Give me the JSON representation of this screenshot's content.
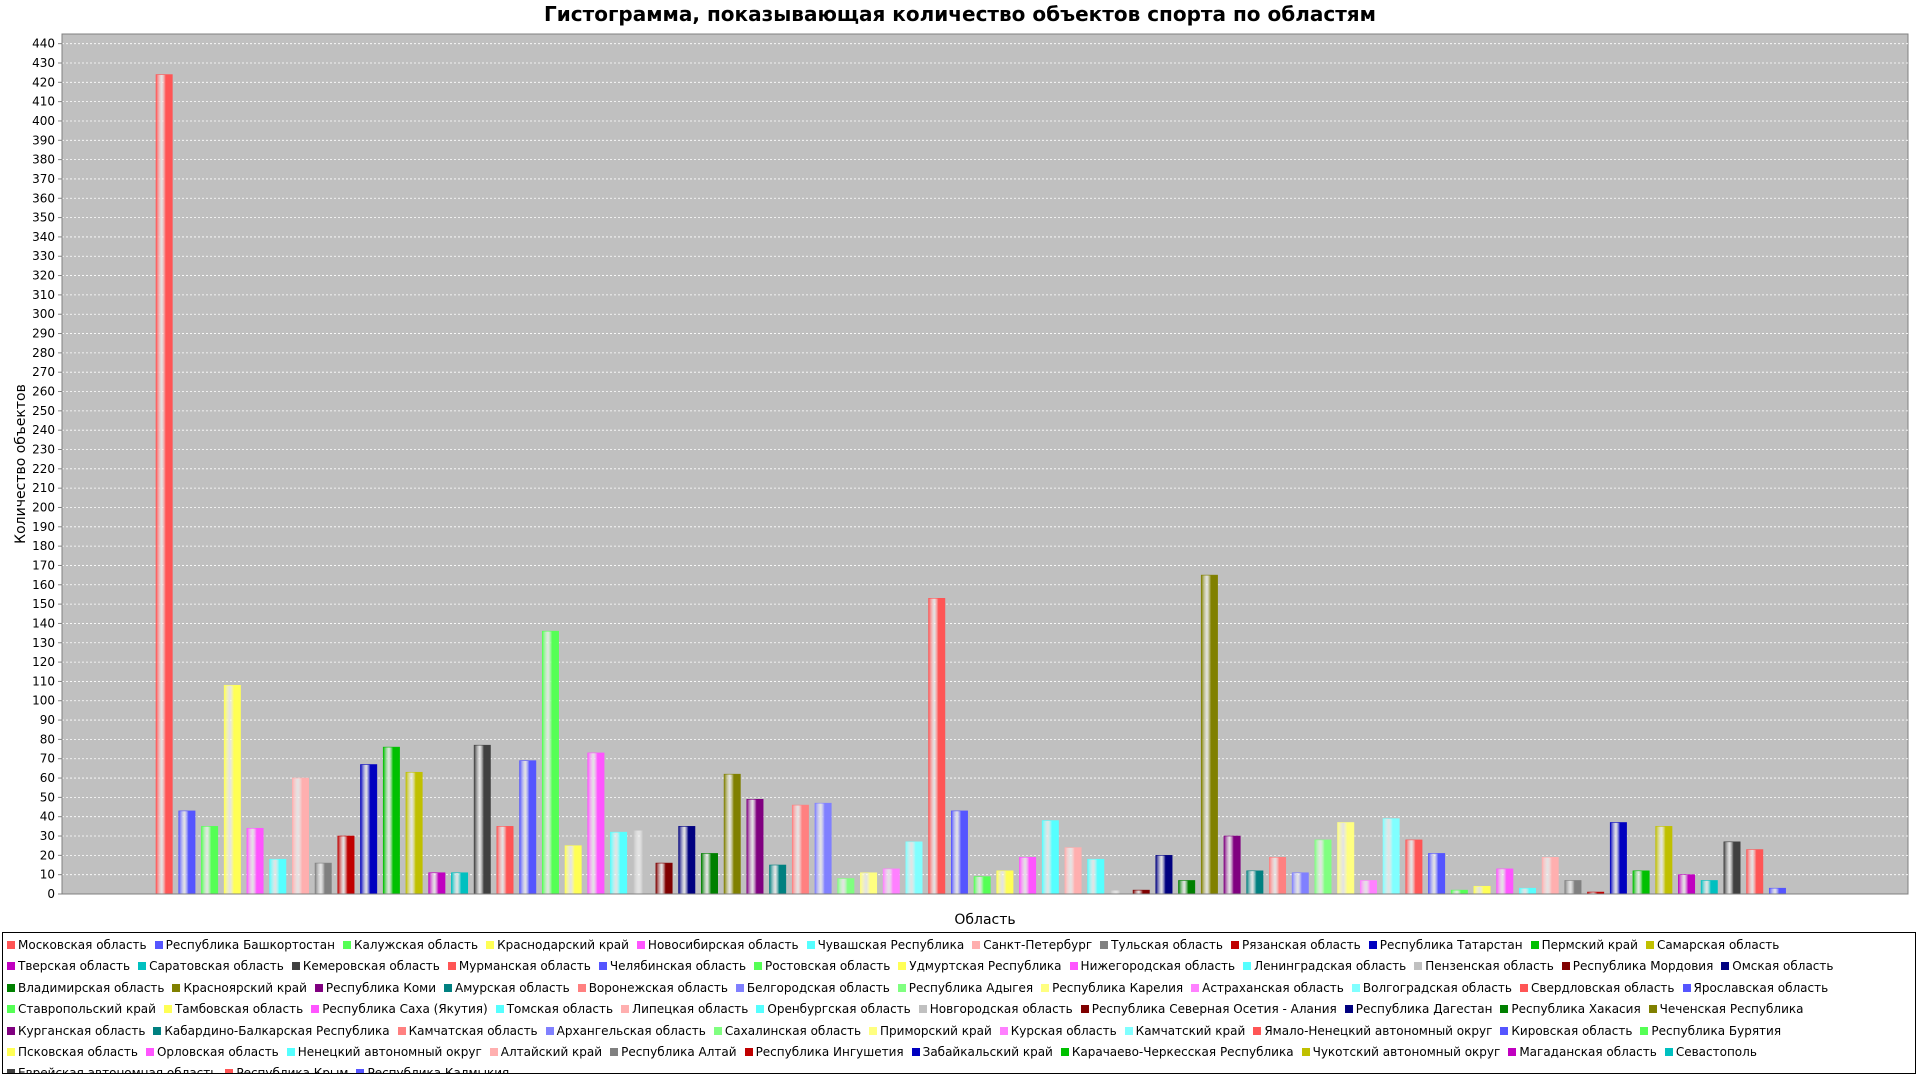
{
  "chart_data": {
    "type": "bar",
    "title": "Гистограмма, показывающая количество объектов спорта по областям",
    "xlabel": "Область",
    "ylabel": "Количество объектов",
    "ylim": [
      0,
      445
    ],
    "ytick_step": 10,
    "grid": true,
    "legend_position": "bottom",
    "series": [
      {
        "name": "Московская область",
        "value": 424,
        "color": "#ff5555"
      },
      {
        "name": "Республика Башкортостан",
        "value": 43,
        "color": "#5555ff"
      },
      {
        "name": "Калужская область",
        "value": 35,
        "color": "#55ff55"
      },
      {
        "name": "Краснодарский край",
        "value": 108,
        "color": "#ffff55"
      },
      {
        "name": "Новосибирская область",
        "value": 34,
        "color": "#ff55ff"
      },
      {
        "name": "Чувашская Республика",
        "value": 18,
        "color": "#55ffff"
      },
      {
        "name": "Санкт-Петербург",
        "value": 60,
        "color": "#ffafaf"
      },
      {
        "name": "Тульская область",
        "value": 16,
        "color": "#808080"
      },
      {
        "name": "Рязанская область",
        "value": 30,
        "color": "#c00000"
      },
      {
        "name": "Республика Татарстан",
        "value": 67,
        "color": "#0000c0"
      },
      {
        "name": "Пермский край",
        "value": 76,
        "color": "#00c000"
      },
      {
        "name": "Самарская область",
        "value": 63,
        "color": "#c0c000"
      },
      {
        "name": "Тверская область",
        "value": 11,
        "color": "#c000c0"
      },
      {
        "name": "Саратовская область",
        "value": 11,
        "color": "#00c0c0"
      },
      {
        "name": "Кемеровская область",
        "value": 77,
        "color": "#404040"
      },
      {
        "name": "Мурманская область",
        "value": 35,
        "color": "#ff5555"
      },
      {
        "name": "Челябинская область",
        "value": 69,
        "color": "#5555ff"
      },
      {
        "name": "Ростовская область",
        "value": 136,
        "color": "#55ff55"
      },
      {
        "name": "Удмуртская Республика",
        "value": 25,
        "color": "#ffff55"
      },
      {
        "name": "Нижегородская область",
        "value": 73,
        "color": "#ff55ff"
      },
      {
        "name": "Ленинградская область",
        "value": 32,
        "color": "#55ffff"
      },
      {
        "name": "Пензенская область",
        "value": 33,
        "color": "#c0c0c0"
      },
      {
        "name": "Республика Мордовия",
        "value": 16,
        "color": "#800000"
      },
      {
        "name": "Омская область",
        "value": 35,
        "color": "#000080"
      },
      {
        "name": "Владимирская область",
        "value": 21,
        "color": "#008000"
      },
      {
        "name": "Красноярский край",
        "value": 62,
        "color": "#808000"
      },
      {
        "name": "Республика Коми",
        "value": 49,
        "color": "#800080"
      },
      {
        "name": "Амурская область",
        "value": 15,
        "color": "#008080"
      },
      {
        "name": "Воронежская область",
        "value": 46,
        "color": "#ff8080"
      },
      {
        "name": "Белгородская область",
        "value": 47,
        "color": "#8080ff"
      },
      {
        "name": "Республика Адыгея",
        "value": 8,
        "color": "#80ff80"
      },
      {
        "name": "Республика Карелия",
        "value": 11,
        "color": "#ffff80"
      },
      {
        "name": "Астраханская область",
        "value": 13,
        "color": "#ff80ff"
      },
      {
        "name": "Волгоградская область",
        "value": 27,
        "color": "#80ffff"
      },
      {
        "name": "Свердловская область",
        "value": 153,
        "color": "#ff5555"
      },
      {
        "name": "Ярославская область",
        "value": 43,
        "color": "#5555ff"
      },
      {
        "name": "Ставропольский край",
        "value": 9,
        "color": "#55ff55"
      },
      {
        "name": "Тамбовская область",
        "value": 12,
        "color": "#ffff55"
      },
      {
        "name": "Республика Саха (Якутия)",
        "value": 19,
        "color": "#ff55ff"
      },
      {
        "name": "Томская область",
        "value": 38,
        "color": "#55ffff"
      },
      {
        "name": "Липецкая область",
        "value": 24,
        "color": "#ffafaf"
      },
      {
        "name": "Оренбургская область",
        "value": 18,
        "color": "#55ffff"
      },
      {
        "name": "Новгородская область",
        "value": 2,
        "color": "#c0c0c0"
      },
      {
        "name": "Республика Северная Осетия - Алания",
        "value": 2,
        "color": "#800000"
      },
      {
        "name": "Республика Дагестан",
        "value": 20,
        "color": "#000080"
      },
      {
        "name": "Республика Хакасия",
        "value": 7,
        "color": "#008000"
      },
      {
        "name": "Чеченская Республика",
        "value": 165,
        "color": "#808000"
      },
      {
        "name": "Курганская область",
        "value": 30,
        "color": "#800080"
      },
      {
        "name": "Кабардино-Балкарская Республика",
        "value": 12,
        "color": "#008080"
      },
      {
        "name": "Камчатская область",
        "value": 19,
        "color": "#ff8080"
      },
      {
        "name": "Архангельская область",
        "value": 11,
        "color": "#8080ff"
      },
      {
        "name": "Сахалинская область",
        "value": 28,
        "color": "#80ff80"
      },
      {
        "name": "Приморский край",
        "value": 37,
        "color": "#ffff80"
      },
      {
        "name": "Курская область",
        "value": 7,
        "color": "#ff80ff"
      },
      {
        "name": "Камчатский край",
        "value": 39,
        "color": "#80ffff"
      },
      {
        "name": "Ямало-Ненецкий автономный округ",
        "value": 28,
        "color": "#ff5555"
      },
      {
        "name": "Кировская область",
        "value": 21,
        "color": "#5555ff"
      },
      {
        "name": "Республика Бурятия",
        "value": 2,
        "color": "#55ff55"
      },
      {
        "name": "Псковская область",
        "value": 4,
        "color": "#ffff55"
      },
      {
        "name": "Орловская область",
        "value": 13,
        "color": "#ff55ff"
      },
      {
        "name": "Ненецкий автономный округ",
        "value": 3,
        "color": "#55ffff"
      },
      {
        "name": "Алтайский край",
        "value": 19,
        "color": "#ffafaf"
      },
      {
        "name": "Республика Алтай",
        "value": 7,
        "color": "#808080"
      },
      {
        "name": "Республика Ингушетия",
        "value": 1,
        "color": "#c00000"
      },
      {
        "name": "Забайкальский край",
        "value": 37,
        "color": "#0000c0"
      },
      {
        "name": "Карачаево-Черкесская Республика",
        "value": 12,
        "color": "#00c000"
      },
      {
        "name": "Чукотский автономный округ",
        "value": 35,
        "color": "#c0c000"
      },
      {
        "name": "Магаданская область",
        "value": 10,
        "color": "#c000c0"
      },
      {
        "name": "Севастополь",
        "value": 7,
        "color": "#00c0c0"
      },
      {
        "name": "Еврейская автономная область",
        "value": 27,
        "color": "#404040"
      },
      {
        "name": "Республика Крым",
        "value": 23,
        "color": "#ff5555"
      },
      {
        "name": "Республика Калмыкия",
        "value": 3,
        "color": "#5555ff"
      }
    ]
  }
}
